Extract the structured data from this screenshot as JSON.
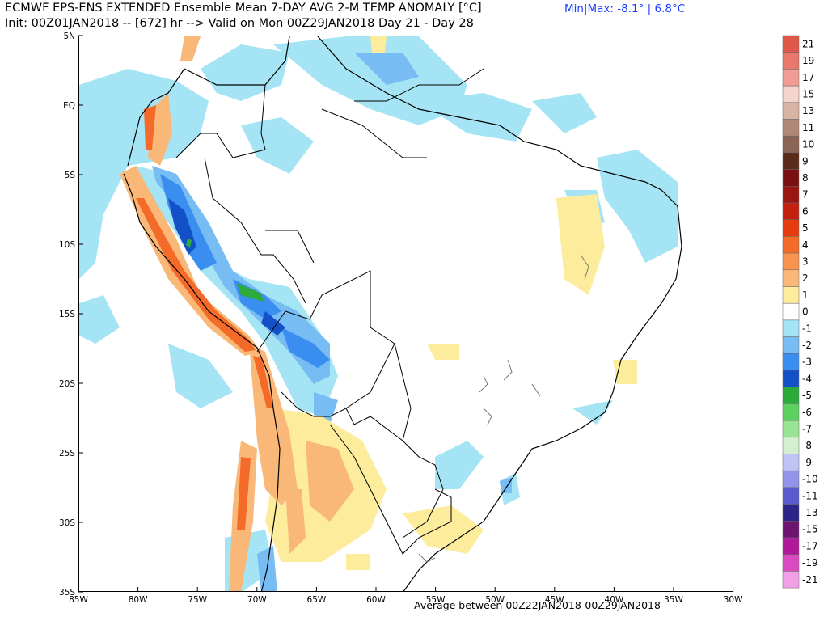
{
  "header": {
    "title_line1": "ECMWF EPS-ENS EXTENDED Ensemble Mean 7-DAY AVG 2-M TEMP ANOMALY [°C]",
    "title_line2": "Init: 00Z01JAN2018 -- [672] hr --> Valid on Mon 00Z29JAN2018  Day 21 - Day 28",
    "minmax": "Min|Max: -8.1° | 6.8°C"
  },
  "footer": {
    "average_text": "Average between 00Z22JAN2018-00Z29JAN2018"
  },
  "map": {
    "lat_labels": [
      "5N",
      "EQ",
      "5S",
      "10S",
      "15S",
      "20S",
      "25S",
      "30S",
      "35S"
    ],
    "lon_labels": [
      "85W",
      "80W",
      "75W",
      "70W",
      "65W",
      "60W",
      "55W",
      "50W",
      "45W",
      "40W",
      "35W",
      "30W"
    ]
  },
  "colorbar": {
    "entries": [
      {
        "label": "21",
        "color": "#e0584a"
      },
      {
        "label": "19",
        "color": "#e8776c"
      },
      {
        "label": "17",
        "color": "#f19d95"
      },
      {
        "label": "15",
        "color": "#f4d4cc"
      },
      {
        "label": "13",
        "color": "#d8b4a4"
      },
      {
        "label": "11",
        "color": "#b08878"
      },
      {
        "label": "10",
        "color": "#8a6454"
      },
      {
        "label": "9",
        "color": "#5a2a1a"
      },
      {
        "label": "8",
        "color": "#7a1010"
      },
      {
        "label": "7",
        "color": "#9a1610"
      },
      {
        "label": "6",
        "color": "#c42010"
      },
      {
        "label": "5",
        "color": "#e63c10"
      },
      {
        "label": "4",
        "color": "#f46a28"
      },
      {
        "label": "3",
        "color": "#f89450"
      },
      {
        "label": "2",
        "color": "#fab878"
      },
      {
        "label": "1",
        "color": "#fcec9c"
      },
      {
        "label": "0",
        "color": "#ffffff"
      },
      {
        "label": "-1",
        "color": "#a4e4f4"
      },
      {
        "label": "-2",
        "color": "#78bcf4"
      },
      {
        "label": "-3",
        "color": "#3a8ef0"
      },
      {
        "label": "-4",
        "color": "#1450c8"
      },
      {
        "label": "-5",
        "color": "#2caa3a"
      },
      {
        "label": "-6",
        "color": "#5cd060"
      },
      {
        "label": "-7",
        "color": "#98e494"
      },
      {
        "label": "-8",
        "color": "#d4eed0"
      },
      {
        "label": "-9",
        "color": "#c0c4f4"
      },
      {
        "label": "-10",
        "color": "#9294e8"
      },
      {
        "label": "-11",
        "color": "#5a5ad0"
      },
      {
        "label": "-13",
        "color": "#2c2486"
      },
      {
        "label": "-15",
        "color": "#6c1470"
      },
      {
        "label": "-17",
        "color": "#b01a9a"
      },
      {
        "label": "-19",
        "color": "#d84cc0"
      },
      {
        "label": "-21",
        "color": "#f0a0e4"
      }
    ]
  }
}
